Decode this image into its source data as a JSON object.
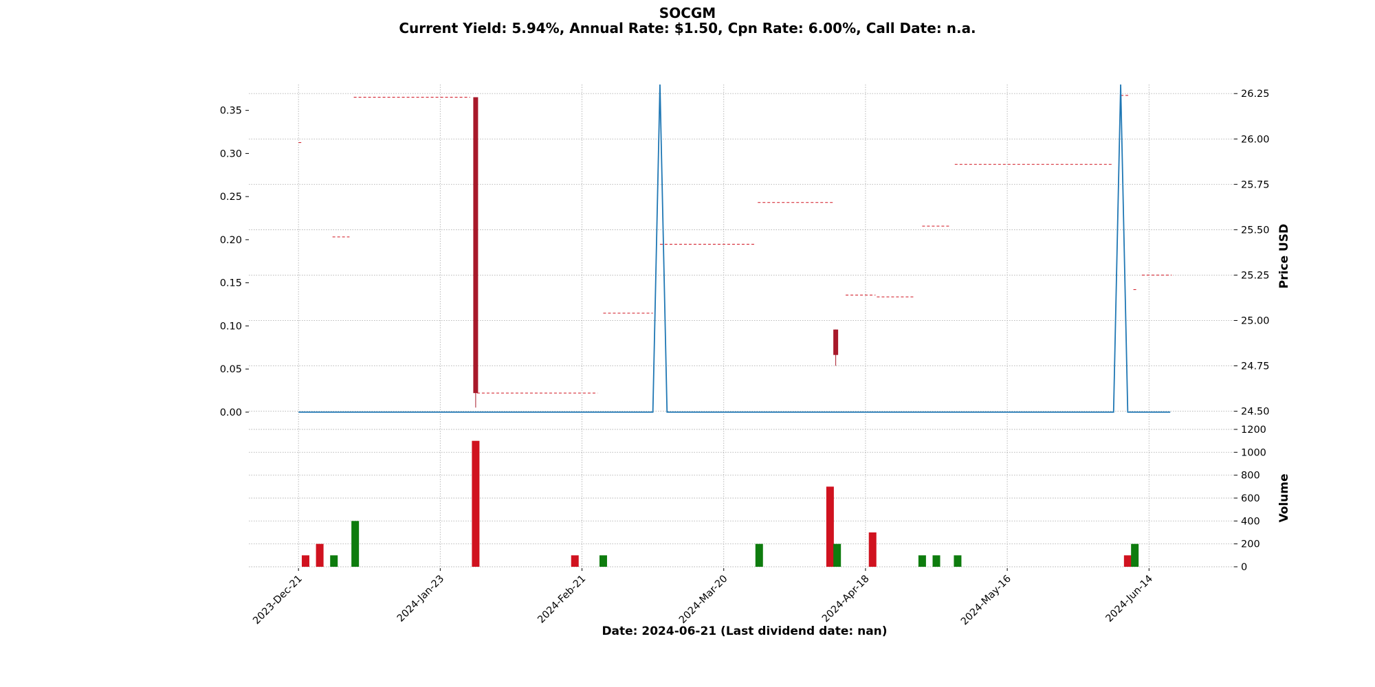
{
  "chart_data": {
    "type": "candlestick",
    "title": "SOCGM",
    "subtitle": "Current Yield: 5.94%, Annual Rate: $1.50, Cpn Rate: 6.00%, Call Date: n.a.",
    "xlabel": "Date: 2024-06-21   (Last dividend date: nan)",
    "left_axis": {
      "ylim": [
        -0.02,
        0.38
      ],
      "ticks": [
        "0.00",
        "0.05",
        "0.10",
        "0.15",
        "0.20",
        "0.25",
        "0.30",
        "0.35"
      ]
    },
    "price_axis": {
      "ylabel": "Price USD",
      "ylim": [
        24.4,
        26.3
      ],
      "ticks": [
        "24.50",
        "24.75",
        "25.00",
        "25.25",
        "25.50",
        "25.75",
        "26.00",
        "26.25"
      ]
    },
    "volume_axis": {
      "ylabel": "Volume",
      "ylim": [
        0,
        1200
      ],
      "ticks": [
        "0",
        "200",
        "400",
        "600",
        "800",
        "1000",
        "1200"
      ]
    },
    "x_range": [
      -3.5,
      66
    ],
    "x_ticks": [
      {
        "label": "2023-Dec-21",
        "x": 0
      },
      {
        "label": "2024-Jan-23",
        "x": 10
      },
      {
        "label": "2024-Feb-21",
        "x": 20
      },
      {
        "label": "2024-Mar-20",
        "x": 30
      },
      {
        "label": "2024-Apr-18",
        "x": 40
      },
      {
        "label": "2024-May-16",
        "x": 50
      },
      {
        "label": "2024-Jun-14",
        "x": 60
      }
    ],
    "dividend_line": {
      "color": "#1f77b4",
      "points": [
        [
          0,
          0
        ],
        [
          25,
          0
        ],
        [
          25.5,
          0.38
        ],
        [
          26,
          0
        ],
        [
          57.5,
          0
        ],
        [
          58,
          0.38
        ],
        [
          58.5,
          0
        ],
        [
          61.5,
          0
        ]
      ]
    },
    "price_segments": [
      {
        "x0": 0,
        "x1": 0.2,
        "y": 25.98
      },
      {
        "x0": 2.4,
        "x1": 3.6,
        "y": 25.46
      },
      {
        "x0": 3.9,
        "x1": 12.1,
        "y": 26.23
      },
      {
        "x0": 12.6,
        "x1": 21.1,
        "y": 24.6
      },
      {
        "x0": 21.5,
        "x1": 25.0,
        "y": 25.04
      },
      {
        "x0": 25.5,
        "x1": 32.2,
        "y": 25.42
      },
      {
        "x0": 32.4,
        "x1": 37.7,
        "y": 25.65
      },
      {
        "x0": 38.6,
        "x1": 40.7,
        "y": 25.14
      },
      {
        "x0": 40.8,
        "x1": 43.5,
        "y": 25.13
      },
      {
        "x0": 44.0,
        "x1": 46.0,
        "y": 25.52
      },
      {
        "x0": 46.3,
        "x1": 57.4,
        "y": 25.86
      },
      {
        "x0": 58.0,
        "x1": 58.6,
        "y": 26.24
      },
      {
        "x0": 58.9,
        "x1": 59.1,
        "y": 25.17
      },
      {
        "x0": 59.5,
        "x1": 61.6,
        "y": 25.25
      }
    ],
    "candles": [
      {
        "x": 12.5,
        "open": 26.23,
        "close": 24.6,
        "high": 26.23,
        "low": 24.52
      },
      {
        "x": 37.9,
        "open": 24.95,
        "close": 24.81,
        "high": 24.95,
        "low": 24.75
      }
    ],
    "volume_bars": [
      {
        "x": 0.5,
        "value": 100,
        "color": "#d0121f"
      },
      {
        "x": 1.5,
        "value": 200,
        "color": "#d0121f"
      },
      {
        "x": 2.5,
        "value": 100,
        "color": "#0e7c0e"
      },
      {
        "x": 4.0,
        "value": 400,
        "color": "#0e7c0e"
      },
      {
        "x": 12.5,
        "value": 1100,
        "color": "#d0121f"
      },
      {
        "x": 19.5,
        "value": 100,
        "color": "#d0121f"
      },
      {
        "x": 21.5,
        "value": 100,
        "color": "#0e7c0e"
      },
      {
        "x": 32.5,
        "value": 200,
        "color": "#0e7c0e"
      },
      {
        "x": 37.5,
        "value": 700,
        "color": "#d0121f"
      },
      {
        "x": 38.0,
        "value": 200,
        "color": "#0e7c0e"
      },
      {
        "x": 40.5,
        "value": 300,
        "color": "#d0121f"
      },
      {
        "x": 44.0,
        "value": 100,
        "color": "#0e7c0e"
      },
      {
        "x": 45.0,
        "value": 100,
        "color": "#0e7c0e"
      },
      {
        "x": 46.5,
        "value": 100,
        "color": "#0e7c0e"
      },
      {
        "x": 58.5,
        "value": 100,
        "color": "#d0121f"
      },
      {
        "x": 59.0,
        "value": 200,
        "color": "#0e7c0e"
      }
    ],
    "colors": {
      "down": "#a8192a",
      "volume_down": "#d0121f",
      "volume_up": "#0e7c0e",
      "price_segment": "#d0121f",
      "dividend": "#1f77b4"
    },
    "grid": true
  }
}
